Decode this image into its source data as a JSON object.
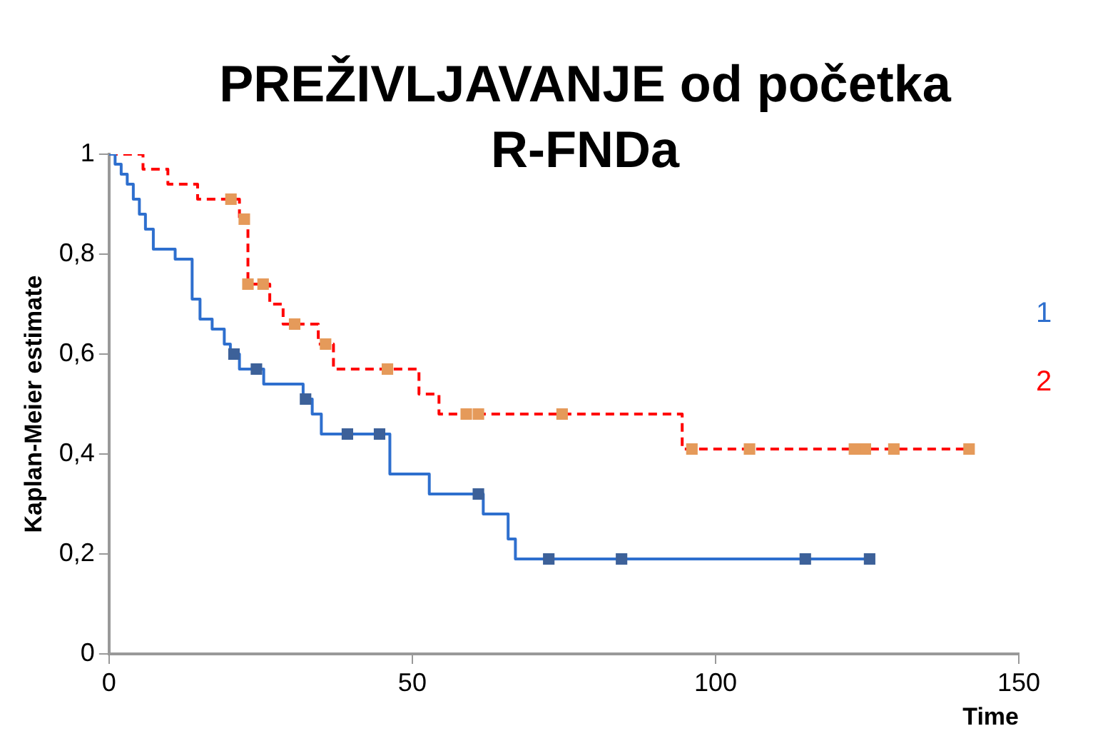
{
  "chart_data": {
    "type": "step",
    "title": "PREŽIVLJAVANJE od početka R-FNDa",
    "xlabel": "Time",
    "ylabel": "Kaplan-Meier estimate",
    "xlim": [
      0,
      150
    ],
    "xticks": [
      0,
      50,
      100,
      150
    ],
    "ylim": [
      0,
      1
    ],
    "yticks": [
      0,
      {
        "value": 0.2,
        "label": "0,2"
      },
      {
        "value": 0.4,
        "label": "0,4"
      },
      {
        "value": 0.6,
        "label": "0,6"
      },
      {
        "value": 0.8,
        "label": "0,8"
      },
      1
    ],
    "grid": false,
    "legend": "right",
    "series": [
      {
        "name": "1",
        "type": "step",
        "color": "#2e6fce",
        "line_style": "solid",
        "x": [
          0,
          1,
          2,
          3,
          4,
          5,
          6,
          7.3,
          10.9,
          13.7,
          15,
          17,
          19,
          20,
          21.5,
          25.5,
          32,
          33.5,
          35,
          46.3,
          52.8,
          61.7,
          65.8,
          67,
          125.4
        ],
        "values": [
          1,
          0.98,
          0.96,
          0.94,
          0.91,
          0.88,
          0.85,
          0.81,
          0.79,
          0.71,
          0.67,
          0.65,
          0.62,
          0.6,
          0.57,
          0.54,
          0.51,
          0.48,
          0.44,
          0.36,
          0.32,
          0.28,
          0.23,
          0.19,
          0.19
        ]
      },
      {
        "type": "scatter",
        "color": "#3d6199",
        "marker": "square",
        "x": [
          20.6,
          24.3,
          32.4,
          39.3,
          44.6,
          60.9,
          72.5,
          84.5,
          114.8,
          125.4
        ],
        "values": [
          0.6,
          0.57,
          0.51,
          0.44,
          0.44,
          0.32,
          0.19,
          0.19,
          0.19,
          0.19
        ]
      },
      {
        "name": "2",
        "type": "step",
        "color": "#ff0000",
        "line_style": "dashed",
        "x": [
          0,
          5.6,
          9.7,
          14.6,
          21.5,
          22.9,
          26.5,
          28.7,
          34.5,
          37,
          51.1,
          54.4,
          94.5,
          141.8
        ],
        "values": [
          1,
          0.97,
          0.94,
          0.91,
          0.87,
          0.74,
          0.7,
          0.66,
          0.62,
          0.57,
          0.52,
          0.48,
          0.41,
          0.41
        ]
      },
      {
        "type": "scatter",
        "color": "#e59a5a",
        "marker": "square",
        "x": [
          20.1,
          22.3,
          22.9,
          25.4,
          30.6,
          35.7,
          45.9,
          58.9,
          60.9,
          74.7,
          96.1,
          105.6,
          122.9,
          124.7,
          129.4,
          141.8
        ],
        "values": [
          0.91,
          0.87,
          0.74,
          0.74,
          0.66,
          0.62,
          0.57,
          0.48,
          0.48,
          0.48,
          0.41,
          0.41,
          0.41,
          0.41,
          0.41,
          0.41
        ]
      }
    ]
  }
}
